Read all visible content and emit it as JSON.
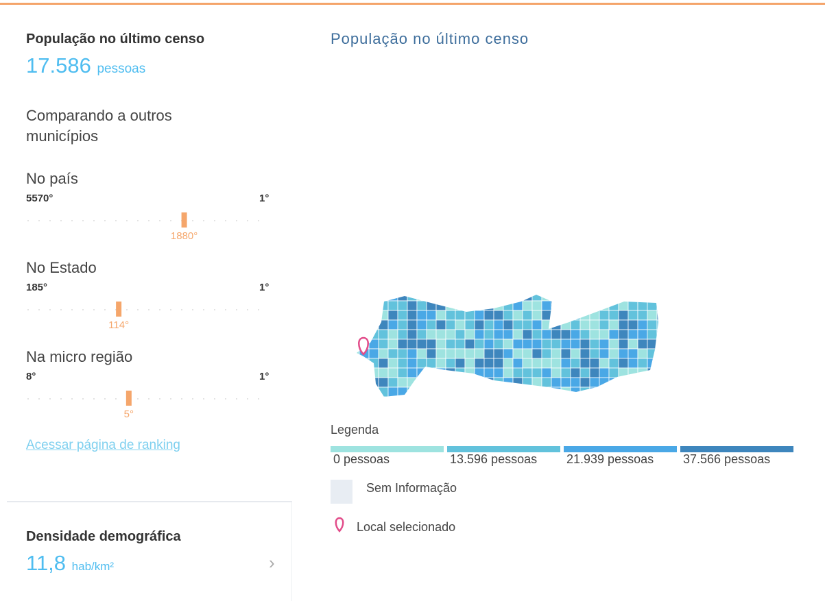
{
  "header": {
    "title": "População no último censo",
    "value": "17.586",
    "unit": "pessoas"
  },
  "comparison": {
    "title": "Comparando a outros municípios",
    "rankings": [
      {
        "title": "No país",
        "min": {
          "value": 5570,
          "label": "5570°"
        },
        "max": {
          "value": 1,
          "label": "1°"
        },
        "rank": {
          "value": 1880,
          "label": "1880°"
        }
      },
      {
        "title": "No Estado",
        "min": {
          "value": 185,
          "label": "185°"
        },
        "max": {
          "value": 1,
          "label": "1°"
        },
        "rank": {
          "value": 114,
          "label": "114°"
        }
      },
      {
        "title": "Na micro região",
        "min": {
          "value": 8,
          "label": "8°"
        },
        "max": {
          "value": 1,
          "label": "1°"
        },
        "rank": {
          "value": 5,
          "label": "5°"
        }
      }
    ],
    "link": "Acessar página de ranking"
  },
  "density": {
    "title": "Densidade demográfica",
    "value": "11,8",
    "unit": "hab/km²"
  },
  "map": {
    "title": "População no último censo",
    "legend": {
      "title": "Legenda",
      "items": [
        {
          "label": "0 pessoas",
          "color": "#9ee3e0"
        },
        {
          "label": "13.596 pessoas",
          "color": "#62c2dc"
        },
        {
          "label": "21.939 pessoas",
          "color": "#4aa8e6"
        },
        {
          "label": "37.566 pessoas",
          "color": "#3e86bd"
        }
      ],
      "no_info": "Sem Informação",
      "selected": "Local selecionado"
    }
  }
}
